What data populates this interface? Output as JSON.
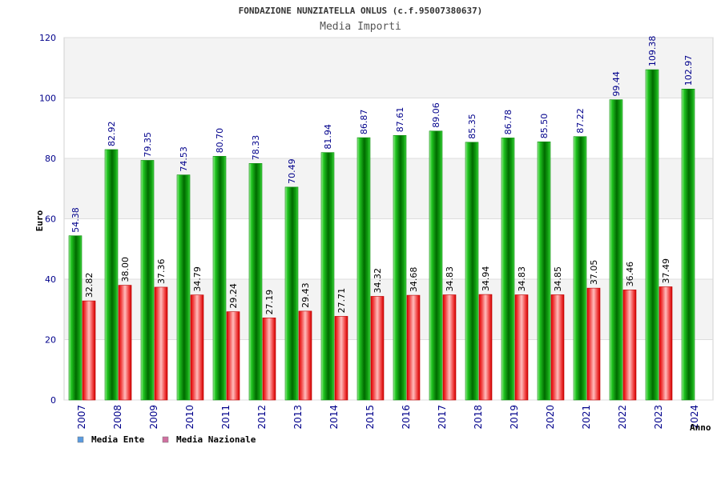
{
  "chart_data": {
    "type": "bar",
    "title": "FONDAZIONE NUNZIATELLA ONLUS (c.f.95007380637)",
    "subtitle": "Media Importi",
    "xlabel": "Anno",
    "ylabel": "Euro",
    "ylim": [
      0,
      120
    ],
    "yticks": [
      "0",
      "20",
      "40",
      "60",
      "80",
      "100",
      "120"
    ],
    "grid": true,
    "legend_position": "bottom-left",
    "categories": [
      "2007",
      "2008",
      "2009",
      "2010",
      "2011",
      "2012",
      "2013",
      "2014",
      "2015",
      "2016",
      "2017",
      "2018",
      "2019",
      "2020",
      "2021",
      "2022",
      "2023",
      "2024"
    ],
    "series": [
      {
        "name": "Media Ente",
        "color": "#00bb00",
        "legend_color": "#5a9be0",
        "values": [
          54.38,
          82.92,
          79.35,
          74.53,
          80.7,
          78.33,
          70.49,
          81.94,
          86.87,
          87.61,
          89.06,
          85.35,
          86.78,
          85.5,
          87.22,
          99.44,
          109.38,
          102.97
        ],
        "labels": [
          "54.38",
          "82.92",
          "79.35",
          "74.53",
          "80.70",
          "78.33",
          "70.49",
          "81.94",
          "86.87",
          "87.61",
          "89.06",
          "85.35",
          "86.78",
          "85.50",
          "87.22",
          "99.44",
          "109.38",
          "102.97"
        ]
      },
      {
        "name": "Media Nazionale",
        "color": "#ee1111",
        "legend_color": "#d070a0",
        "values": [
          32.82,
          38.0,
          37.36,
          34.79,
          29.24,
          27.19,
          29.43,
          27.71,
          34.32,
          34.68,
          34.83,
          34.94,
          34.83,
          34.85,
          37.05,
          36.46,
          37.49,
          null
        ],
        "labels": [
          "32.82",
          "38.00",
          "37.36",
          "34.79",
          "29.24",
          "27.19",
          "29.43",
          "27.71",
          "34.32",
          "34.68",
          "34.83",
          "34.94",
          "34.83",
          "34.85",
          "37.05",
          "36.46",
          "37.49",
          ""
        ]
      }
    ]
  }
}
